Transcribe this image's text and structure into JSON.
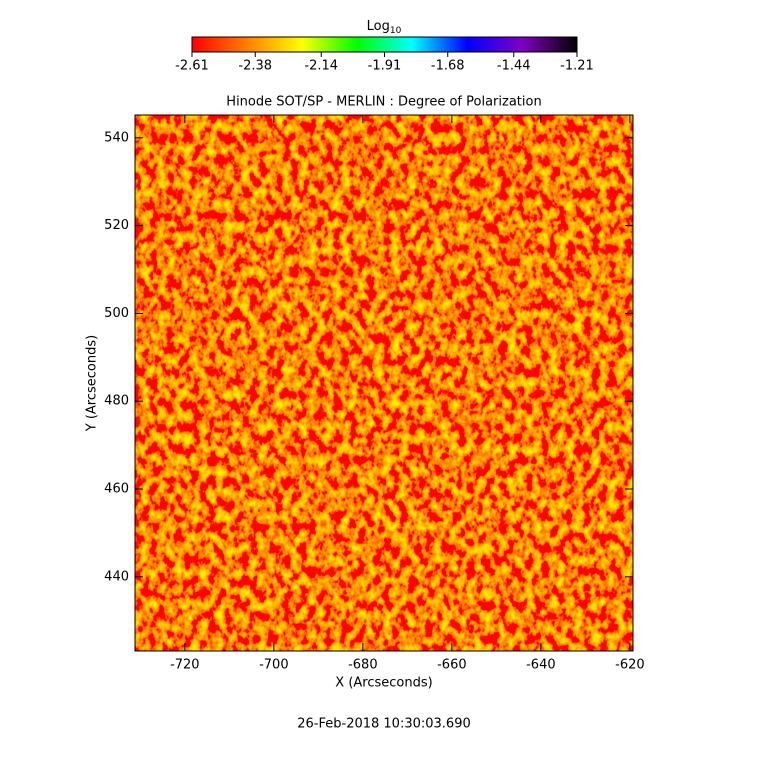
{
  "chart_data": {
    "type": "image",
    "title": "Hinode SOT/SP - MERLIN : Degree of Polarization",
    "x_label": "X (Arcseconds)",
    "y_label": "Y (Arcseconds)",
    "footer": "26-Feb-2018 10:30:03.690",
    "xlim": [
      -731.2,
      -619.3
    ],
    "xticks": [
      -720,
      -700,
      -680,
      -660,
      -640,
      -620
    ],
    "ylim": [
      423.1,
      545.2
    ],
    "yticks": [
      440,
      460,
      480,
      500,
      520,
      540
    ],
    "colorbar": {
      "label": "Log",
      "label_sub": "10",
      "clim": [
        -2.61,
        -1.21
      ],
      "ticks": [
        -2.61,
        -2.38,
        -2.14,
        -1.91,
        -1.68,
        -1.44,
        -1.21
      ],
      "colors": [
        "#ff0000",
        "#ff8000",
        "#ffff00",
        "#00ff00",
        "#00ffff",
        "#0000ff",
        "#8000c0",
        "#000000"
      ]
    }
  }
}
